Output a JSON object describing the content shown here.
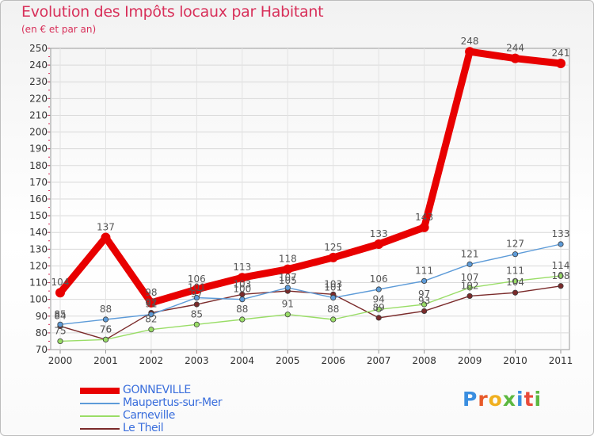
{
  "chart_data": {
    "type": "line",
    "title": "Evolution des Impôts locaux par Habitant",
    "subtitle": "(en € et par an)",
    "xlabel": "",
    "ylabel": "",
    "x": [
      "2000",
      "2001",
      "2002",
      "2003",
      "2004",
      "2005",
      "2006",
      "2007",
      "2008",
      "2009",
      "2010",
      "2011"
    ],
    "ylim": [
      70,
      250
    ],
    "yticks": [
      70,
      80,
      90,
      100,
      110,
      120,
      130,
      140,
      150,
      160,
      170,
      180,
      190,
      200,
      210,
      220,
      230,
      240,
      250
    ],
    "grid": true,
    "legend_position": "bottom-left",
    "series": [
      {
        "name": "GONNEVILLE",
        "color": "#e80000",
        "values": [
          104,
          137,
          98,
          106,
          113,
          118,
          125,
          133,
          143,
          248,
          244,
          241
        ]
      },
      {
        "name": "Maupertus-sur-Mer",
        "color": "#5d9bd8",
        "values": [
          85,
          88,
          91,
          101,
          100,
          107,
          101,
          106,
          111,
          121,
          127,
          133
        ]
      },
      {
        "name": "Carneville",
        "color": "#99dd66",
        "values": [
          75,
          76,
          82,
          85,
          88,
          91,
          88,
          94,
          97,
          107,
          111,
          114
        ]
      },
      {
        "name": "Le Theil",
        "color": "#7a2a2a",
        "values": [
          84,
          76,
          92,
          97,
          103,
          105,
          103,
          89,
          93,
          102,
          104,
          108
        ]
      }
    ]
  },
  "branding": {
    "logo_text": "Proxiti",
    "logo_colors": [
      "#3a8ee0",
      "#e85a2a",
      "#f0b020",
      "#5cb840",
      "#3a8ee0",
      "#e84a3a",
      "#5cb840"
    ]
  }
}
